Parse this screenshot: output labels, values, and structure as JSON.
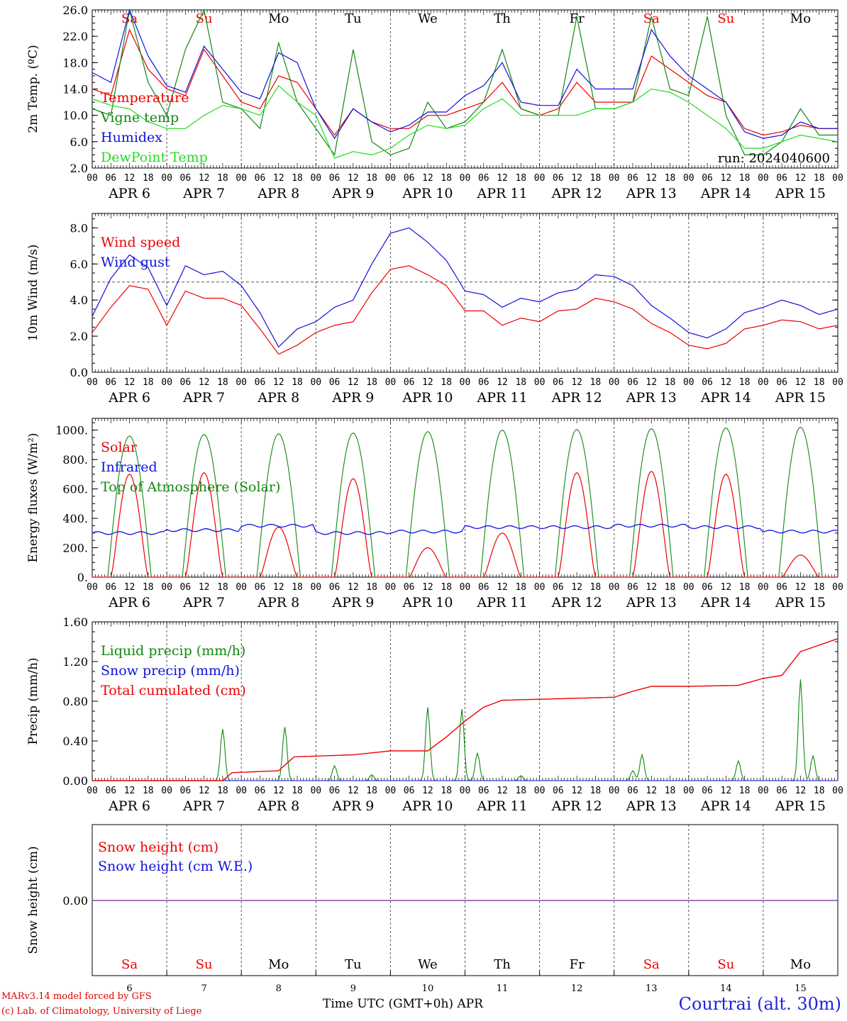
{
  "meta": {
    "run_label": "run: 2024040600",
    "credit_line1": "MARv3.14 model forced by GFS",
    "credit_line2": "(c) Lab. of Climatology, University of Liege",
    "x_axis_label": "Time UTC (GMT+0h) APR",
    "station_title": "Courtrai (alt. 30m)",
    "hour_ticks": [
      "00",
      "06",
      "12",
      "18"
    ],
    "final_hour_tick": "00",
    "colors": {
      "red": "#ee0000",
      "green": "#118811",
      "blue": "#1111dd",
      "lightgreen": "#22dd22",
      "purple": "#8844aa"
    }
  },
  "chart_data": [
    {
      "type": "line",
      "panel": "temperature",
      "ylabel": "2m Temp. (ºC)",
      "ylim": [
        2,
        26
      ],
      "yticks": [
        "2.0",
        "6.0",
        "10.0",
        "14.0",
        "18.0",
        "22.0",
        "26.0"
      ],
      "day_labels": [
        "Sa",
        "Su",
        "Mo",
        "Tu",
        "We",
        "Th",
        "Fr",
        "Sa",
        "Su",
        "Mo"
      ],
      "weekend_days": [
        0,
        1,
        7,
        8
      ],
      "date_labels": [
        "APR  6",
        "APR  7",
        "APR  8",
        "APR  9",
        "APR 10",
        "APR 11",
        "APR 12",
        "APR 13",
        "APR 14",
        "APR 15"
      ],
      "x_hours": [
        0,
        6,
        12,
        18,
        24,
        30,
        36,
        42,
        48,
        54,
        60,
        66,
        72,
        78,
        84,
        90,
        96,
        102,
        108,
        114,
        120,
        126,
        132,
        138,
        144,
        150,
        156,
        162,
        168,
        174,
        180,
        186,
        192,
        198,
        204,
        210,
        216,
        222,
        228,
        234,
        240
      ],
      "series": [
        {
          "name": "Temperature",
          "color": "#ee0000",
          "values": [
            14,
            13,
            23,
            17,
            14,
            13,
            20,
            16,
            12,
            11,
            16,
            15,
            11,
            7,
            11,
            9,
            8,
            8,
            10,
            10,
            11,
            12,
            15,
            11,
            10,
            11,
            15,
            12,
            12,
            12,
            19,
            17,
            15,
            13,
            12,
            8,
            7,
            7.5,
            8.5,
            8,
            8
          ]
        },
        {
          "name": "Vigne temp",
          "color": "#118811",
          "values": [
            11,
            10,
            26,
            15,
            10,
            20,
            26,
            12,
            11,
            8,
            21,
            12,
            8,
            4,
            20,
            6,
            4,
            5,
            12,
            8,
            9,
            12,
            20,
            11,
            10,
            10,
            25,
            11,
            11,
            12,
            25,
            14,
            13,
            25,
            10,
            4,
            4,
            6,
            11,
            7,
            7
          ]
        },
        {
          "name": "Humidex",
          "color": "#1111dd",
          "values": [
            16.5,
            15,
            26,
            19,
            14.5,
            13.5,
            20.5,
            17,
            13.5,
            12.5,
            19.5,
            18,
            11,
            6.5,
            11,
            9,
            7.5,
            8.5,
            10.5,
            10.5,
            13,
            14.5,
            18,
            12,
            11.5,
            11.5,
            17,
            14,
            14,
            14,
            23,
            19,
            16,
            14,
            12,
            7.5,
            6.5,
            7,
            9,
            8,
            8
          ]
        },
        {
          "name": "DewPoint Temp",
          "color": "#22dd22",
          "values": [
            12.5,
            11.5,
            11,
            9,
            8,
            8,
            10,
            11.5,
            11,
            10,
            14.5,
            12,
            10,
            3.5,
            4.5,
            4,
            5,
            7,
            8.5,
            8,
            8.5,
            11,
            12.5,
            10,
            10,
            10,
            10,
            11,
            11,
            12,
            14,
            13.5,
            12,
            10,
            8,
            5,
            5,
            6,
            7,
            6.5,
            6
          ]
        }
      ]
    },
    {
      "type": "line",
      "panel": "wind",
      "ylabel": "10m Wind (m/s)",
      "ylim": [
        0,
        8.8
      ],
      "yticks": [
        "0.0",
        "2.0",
        "4.0",
        "6.0",
        "8.0"
      ],
      "reference_line": 5.0,
      "date_labels": [
        "APR  6",
        "APR  7",
        "APR  8",
        "APR  9",
        "APR 10",
        "APR 11",
        "APR 12",
        "APR 13",
        "APR 14",
        "APR 15"
      ],
      "x_hours": [
        0,
        6,
        12,
        18,
        24,
        30,
        36,
        42,
        48,
        54,
        60,
        66,
        72,
        78,
        84,
        90,
        96,
        102,
        108,
        114,
        120,
        126,
        132,
        138,
        144,
        150,
        156,
        162,
        168,
        174,
        180,
        186,
        192,
        198,
        204,
        210,
        216,
        222,
        228,
        234,
        240
      ],
      "series": [
        {
          "name": "Wind speed",
          "color": "#ee0000",
          "values": [
            2.2,
            3.6,
            4.8,
            4.6,
            2.6,
            4.5,
            4.1,
            4.1,
            3.7,
            2.4,
            1.0,
            1.5,
            2.2,
            2.6,
            2.8,
            4.4,
            5.7,
            5.9,
            5.4,
            4.8,
            3.4,
            3.4,
            2.6,
            3.0,
            2.8,
            3.4,
            3.5,
            4.1,
            3.9,
            3.5,
            2.7,
            2.2,
            1.5,
            1.3,
            1.6,
            2.4,
            2.6,
            2.9,
            2.8,
            2.4,
            2.6
          ]
        },
        {
          "name": "Wind gust",
          "color": "#1111dd",
          "values": [
            3.1,
            5.2,
            6.5,
            5.8,
            3.7,
            5.9,
            5.4,
            5.6,
            4.8,
            3.3,
            1.4,
            2.4,
            2.8,
            3.6,
            4.0,
            6.0,
            7.7,
            8.0,
            7.2,
            6.2,
            4.5,
            4.3,
            3.6,
            4.1,
            3.9,
            4.4,
            4.6,
            5.4,
            5.3,
            4.8,
            3.7,
            3.0,
            2.2,
            1.9,
            2.4,
            3.3,
            3.6,
            4.0,
            3.7,
            3.2,
            3.5
          ]
        }
      ]
    },
    {
      "type": "line",
      "panel": "energy",
      "ylabel": "Energy fluxes (W/m²)",
      "ylim": [
        0,
        1080
      ],
      "yticks": [
        "0.",
        "200.",
        "400.",
        "600.",
        "800.",
        "1000."
      ],
      "date_labels": [
        "APR  6",
        "APR  7",
        "APR  8",
        "APR  9",
        "APR 10",
        "APR 11",
        "APR 12",
        "APR 13",
        "APR 14",
        "APR 15"
      ],
      "series": [
        {
          "name": "Solar",
          "color": "#ee0000",
          "daily_peaks": [
            700,
            710,
            340,
            670,
            200,
            300,
            710,
            720,
            700,
            150
          ]
        },
        {
          "name": "Infrared",
          "color": "#1111dd",
          "daily_values": [
            300,
            320,
            350,
            300,
            310,
            340,
            340,
            350,
            340,
            310
          ]
        },
        {
          "name": "Top of Atmosphere (Solar)",
          "color": "#118811",
          "daily_peaks": [
            960,
            970,
            975,
            980,
            990,
            1000,
            1005,
            1010,
            1015,
            1020
          ]
        }
      ]
    },
    {
      "type": "line",
      "panel": "precip",
      "ylabel": "Precip (mm/h)",
      "ylim": [
        0,
        1.6
      ],
      "yticks": [
        "0.00",
        "0.40",
        "0.80",
        "1.20",
        "1.60"
      ],
      "date_labels": [
        "APR  6",
        "APR  7",
        "APR  8",
        "APR  9",
        "APR 10",
        "APR 11",
        "APR 12",
        "APR 13",
        "APR 14",
        "APR 15"
      ],
      "series": [
        {
          "name": "Liquid precip (mm/h)",
          "color": "#118811",
          "peaks": [
            [
              42,
              0.52
            ],
            [
              62,
              0.54
            ],
            [
              78,
              0.15
            ],
            [
              90,
              0.06
            ],
            [
              108,
              0.74
            ],
            [
              119,
              0.72
            ],
            [
              124,
              0.28
            ],
            [
              138,
              0.05
            ],
            [
              174,
              0.1
            ],
            [
              177,
              0.26
            ],
            [
              208,
              0.2
            ],
            [
              228,
              1.02
            ],
            [
              232,
              0.25
            ]
          ]
        },
        {
          "name": "Snow precip (mm/h)",
          "color": "#1111dd",
          "values": [
            0
          ]
        },
        {
          "name": "Total cumulated (cm)",
          "color": "#ee0000",
          "x_hours": [
            0,
            42,
            45,
            60,
            65,
            84,
            96,
            108,
            114,
            120,
            126,
            132,
            144,
            168,
            174,
            180,
            192,
            208,
            216,
            222,
            228,
            240
          ],
          "values": [
            0,
            0,
            0.08,
            0.1,
            0.24,
            0.26,
            0.3,
            0.3,
            0.44,
            0.6,
            0.74,
            0.81,
            0.82,
            0.84,
            0.9,
            0.95,
            0.95,
            0.96,
            1.03,
            1.06,
            1.3,
            1.43
          ]
        }
      ]
    },
    {
      "type": "line",
      "panel": "snow",
      "ylabel": "Snow height (cm)",
      "yticks": [
        "0.00"
      ],
      "date_numbers": [
        "6",
        "7",
        "8",
        "9",
        "10",
        "11",
        "12",
        "13",
        "14",
        "15"
      ],
      "day_labels": [
        "Sa",
        "Su",
        "Mo",
        "Tu",
        "We",
        "Th",
        "Fr",
        "Sa",
        "Su",
        "Mo"
      ],
      "weekend_days": [
        0,
        1,
        7,
        8
      ],
      "series": [
        {
          "name": "Snow height (cm)",
          "color": "#ee0000",
          "values": [
            0
          ]
        },
        {
          "name": "Snow height (cm W.E.)",
          "color": "#1111dd",
          "values": [
            0
          ]
        }
      ]
    }
  ]
}
